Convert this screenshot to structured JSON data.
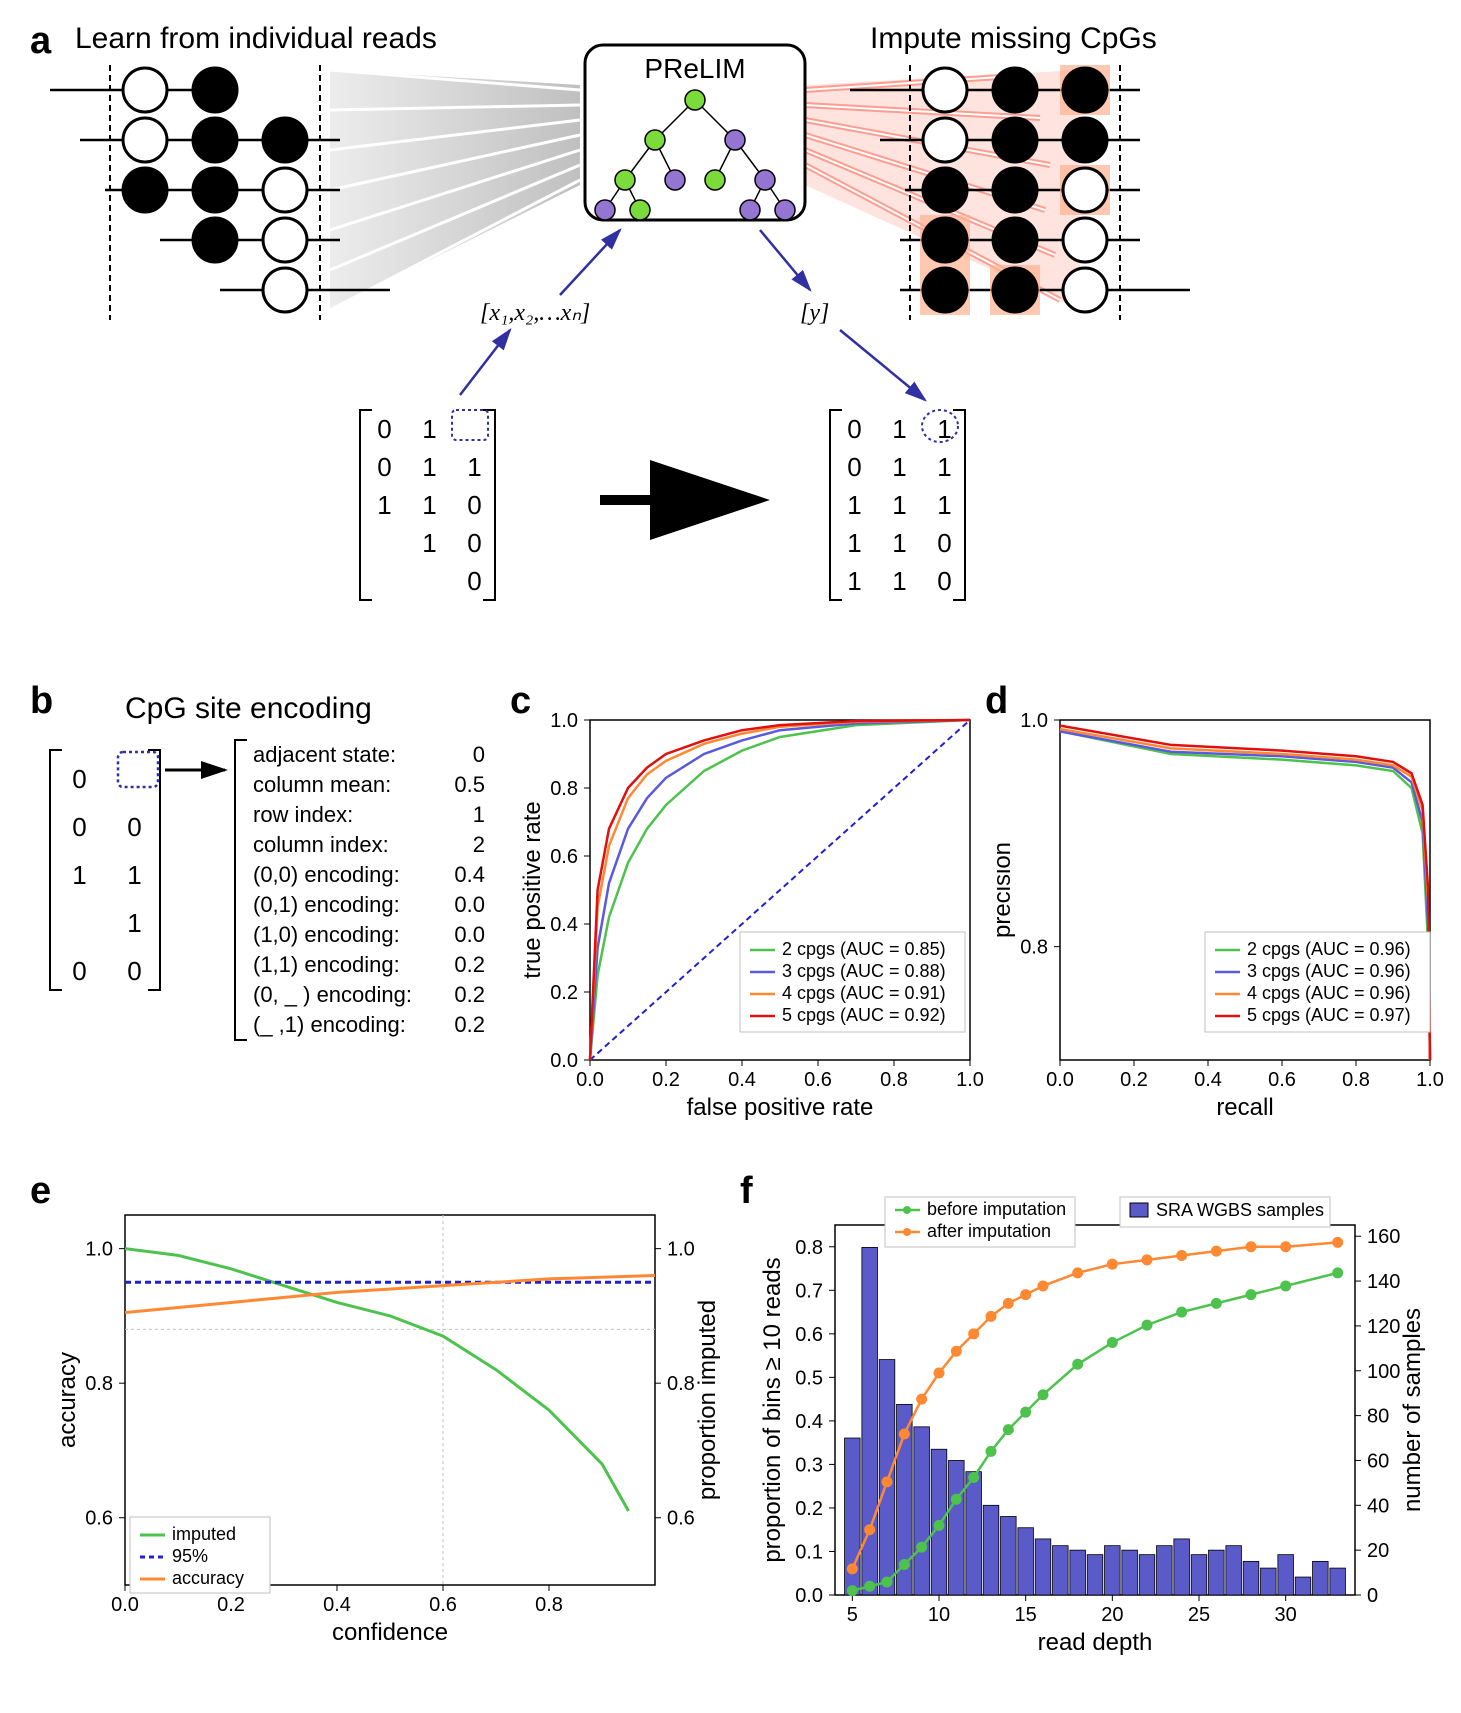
{
  "panel_labels": {
    "a": "a",
    "b": "b",
    "c": "c",
    "d": "d",
    "e": "e",
    "f": "f"
  },
  "titles": {
    "learn": "Learn from individual reads",
    "impute": "Impute missing CpGs",
    "prelim": "PReLIM",
    "encoding_title": "CpG site encoding"
  },
  "formulas": {
    "x": "[x₁,x₂,…xₙ]",
    "y": "[y]"
  },
  "matrix_a_left": [
    [
      "0",
      "1",
      ""
    ],
    [
      "0",
      "1",
      "1"
    ],
    [
      "1",
      "1",
      "0"
    ],
    [
      "",
      "1",
      "0"
    ],
    [
      "",
      "",
      "0"
    ]
  ],
  "matrix_a_right": [
    [
      "0",
      "1",
      "1"
    ],
    [
      "0",
      "1",
      "1"
    ],
    [
      "1",
      "1",
      "1"
    ],
    [
      "1",
      "1",
      "0"
    ],
    [
      "1",
      "1",
      "0"
    ]
  ],
  "matrix_b": [
    [
      "0",
      ""
    ],
    [
      "0",
      "0"
    ],
    [
      "1",
      "1"
    ],
    [
      "",
      "1"
    ],
    [
      "0",
      "0"
    ]
  ],
  "encoding": [
    {
      "label": "adjacent state:",
      "val": "0"
    },
    {
      "label": "column mean:",
      "val": "0.5"
    },
    {
      "label": "row index:",
      "val": "1"
    },
    {
      "label": "column index:",
      "val": "2"
    },
    {
      "label": "(0,0) encoding:",
      "val": "0.4"
    },
    {
      "label": "(0,1) encoding:",
      "val": "0.0"
    },
    {
      "label": "(1,0) encoding:",
      "val": "0.0"
    },
    {
      "label": "(1,1) encoding:",
      "val": "0.2"
    },
    {
      "label": "(0, _ ) encoding:",
      "val": "0.2"
    },
    {
      "label": "(_ ,1) encoding:",
      "val": "0.2"
    }
  ],
  "panel_c": {
    "type": "roc",
    "xlabel": "false positive rate",
    "ylabel": "true positive rate",
    "xlim": [
      0,
      1
    ],
    "ylim": [
      0,
      1
    ],
    "xticks": [
      0.0,
      0.2,
      0.4,
      0.6,
      0.8,
      1.0
    ],
    "yticks": [
      0.0,
      0.2,
      0.4,
      0.6,
      0.8,
      1.0
    ],
    "diag_color": "#2020d0",
    "series": [
      {
        "label": "2 cpgs (AUC = 0.85)",
        "color": "#4dc24d",
        "pts": [
          [
            0,
            0
          ],
          [
            0.02,
            0.25
          ],
          [
            0.05,
            0.42
          ],
          [
            0.1,
            0.58
          ],
          [
            0.15,
            0.68
          ],
          [
            0.2,
            0.75
          ],
          [
            0.3,
            0.85
          ],
          [
            0.4,
            0.91
          ],
          [
            0.5,
            0.95
          ],
          [
            0.7,
            0.985
          ],
          [
            1,
            1
          ]
        ]
      },
      {
        "label": "3 cpgs (AUC = 0.88)",
        "color": "#5a5ae0",
        "pts": [
          [
            0,
            0
          ],
          [
            0.02,
            0.33
          ],
          [
            0.05,
            0.52
          ],
          [
            0.1,
            0.68
          ],
          [
            0.15,
            0.77
          ],
          [
            0.2,
            0.83
          ],
          [
            0.3,
            0.9
          ],
          [
            0.4,
            0.94
          ],
          [
            0.5,
            0.97
          ],
          [
            0.7,
            0.99
          ],
          [
            1,
            1
          ]
        ]
      },
      {
        "label": "4 cpgs (AUC = 0.91)",
        "color": "#ff8833",
        "pts": [
          [
            0,
            0
          ],
          [
            0.02,
            0.45
          ],
          [
            0.05,
            0.63
          ],
          [
            0.1,
            0.77
          ],
          [
            0.15,
            0.84
          ],
          [
            0.2,
            0.88
          ],
          [
            0.3,
            0.93
          ],
          [
            0.4,
            0.96
          ],
          [
            0.5,
            0.98
          ],
          [
            0.7,
            0.995
          ],
          [
            1,
            1
          ]
        ]
      },
      {
        "label": "5 cpgs (AUC = 0.92)",
        "color": "#e01010",
        "pts": [
          [
            0,
            0
          ],
          [
            0.02,
            0.5
          ],
          [
            0.05,
            0.68
          ],
          [
            0.1,
            0.8
          ],
          [
            0.15,
            0.86
          ],
          [
            0.2,
            0.9
          ],
          [
            0.3,
            0.94
          ],
          [
            0.4,
            0.97
          ],
          [
            0.5,
            0.985
          ],
          [
            0.7,
            0.997
          ],
          [
            1,
            1
          ]
        ]
      }
    ]
  },
  "panel_d": {
    "type": "pr",
    "xlabel": "recall",
    "ylabel": "precision",
    "xlim": [
      0,
      1
    ],
    "ylim": [
      0.7,
      1.0
    ],
    "xticks": [
      0.0,
      0.2,
      0.4,
      0.6,
      0.8,
      1.0
    ],
    "yticks": [
      0.8,
      1.0
    ],
    "series": [
      {
        "label": "2 cpgs (AUC = 0.96)",
        "color": "#4dc24d",
        "pts": [
          [
            0,
            0.99
          ],
          [
            0.3,
            0.97
          ],
          [
            0.6,
            0.965
          ],
          [
            0.8,
            0.96
          ],
          [
            0.9,
            0.955
          ],
          [
            0.95,
            0.94
          ],
          [
            0.98,
            0.9
          ],
          [
            0.995,
            0.8
          ],
          [
            1,
            0.7
          ]
        ]
      },
      {
        "label": "3 cpgs (AUC = 0.96)",
        "color": "#5a5ae0",
        "pts": [
          [
            0,
            0.99
          ],
          [
            0.3,
            0.972
          ],
          [
            0.6,
            0.968
          ],
          [
            0.8,
            0.963
          ],
          [
            0.9,
            0.958
          ],
          [
            0.95,
            0.945
          ],
          [
            0.98,
            0.91
          ],
          [
            0.995,
            0.82
          ],
          [
            1,
            0.7
          ]
        ]
      },
      {
        "label": "4 cpgs (AUC = 0.96)",
        "color": "#ff8833",
        "pts": [
          [
            0,
            0.992
          ],
          [
            0.3,
            0.975
          ],
          [
            0.6,
            0.97
          ],
          [
            0.8,
            0.965
          ],
          [
            0.9,
            0.96
          ],
          [
            0.95,
            0.95
          ],
          [
            0.98,
            0.92
          ],
          [
            0.995,
            0.84
          ],
          [
            1,
            0.7
          ]
        ]
      },
      {
        "label": "5 cpgs (AUC = 0.97)",
        "color": "#e01010",
        "pts": [
          [
            0,
            0.995
          ],
          [
            0.3,
            0.978
          ],
          [
            0.6,
            0.973
          ],
          [
            0.8,
            0.968
          ],
          [
            0.9,
            0.963
          ],
          [
            0.95,
            0.953
          ],
          [
            0.98,
            0.925
          ],
          [
            0.995,
            0.85
          ],
          [
            1,
            0.7
          ]
        ]
      }
    ]
  },
  "panel_e": {
    "type": "line",
    "xlabel": "confidence",
    "ylabel": "accuracy",
    "ylabel2": "proportion imputed",
    "xlim": [
      0,
      1
    ],
    "ylim": [
      0.5,
      1.05
    ],
    "xticks": [
      0.0,
      0.2,
      0.4,
      0.6,
      0.8
    ],
    "yticks": [
      0.6,
      0.8,
      1.0
    ],
    "yticks2": [
      0.6,
      0.8,
      1.0
    ],
    "vline_x": 0.6,
    "hline_y": 0.88,
    "hline_color": "#c0c0c0",
    "dash_y": 0.95,
    "dash_color": "#2020d0",
    "series": [
      {
        "label": "imputed",
        "color": "#4dc24d",
        "pts": [
          [
            0,
            1.0
          ],
          [
            0.1,
            0.99
          ],
          [
            0.2,
            0.97
          ],
          [
            0.3,
            0.945
          ],
          [
            0.4,
            0.92
          ],
          [
            0.5,
            0.9
          ],
          [
            0.6,
            0.87
          ],
          [
            0.7,
            0.82
          ],
          [
            0.8,
            0.76
          ],
          [
            0.9,
            0.68
          ],
          [
            0.95,
            0.61
          ]
        ]
      },
      {
        "label": "95%",
        "color": "#2020d0",
        "dash": true,
        "pts": [
          [
            0,
            0.95
          ],
          [
            1,
            0.95
          ]
        ]
      },
      {
        "label": "accuracy",
        "color": "#ff8833",
        "pts": [
          [
            0,
            0.905
          ],
          [
            0.2,
            0.92
          ],
          [
            0.4,
            0.935
          ],
          [
            0.6,
            0.945
          ],
          [
            0.8,
            0.955
          ],
          [
            1,
            0.96
          ]
        ]
      }
    ]
  },
  "panel_f": {
    "type": "combo",
    "xlabel": "read depth",
    "ylabel": "proportion of bins ≥ 10 reads",
    "ylabel2": "number of samples",
    "xlim": [
      4,
      34
    ],
    "ylim": [
      0,
      0.85
    ],
    "ylim2": [
      0,
      165
    ],
    "xticks": [
      5,
      10,
      15,
      20,
      25,
      30
    ],
    "yticks": [
      0.0,
      0.1,
      0.2,
      0.3,
      0.4,
      0.5,
      0.6,
      0.7,
      0.8
    ],
    "yticks2": [
      0,
      20,
      40,
      60,
      80,
      100,
      120,
      140,
      160
    ],
    "bar_legend": "SRA WGBS samples",
    "bar_color": "#5a5ac8",
    "bars_x": [
      5,
      6,
      7,
      8,
      9,
      10,
      11,
      12,
      13,
      14,
      15,
      16,
      17,
      18,
      19,
      20,
      21,
      22,
      23,
      24,
      25,
      26,
      27,
      28,
      29,
      30,
      31,
      32,
      33
    ],
    "bars_y": [
      70,
      155,
      105,
      85,
      75,
      65,
      60,
      55,
      40,
      35,
      30,
      25,
      22,
      20,
      18,
      22,
      20,
      18,
      22,
      25,
      18,
      20,
      22,
      15,
      12,
      18,
      8,
      15,
      12
    ],
    "lines": [
      {
        "label": "before imputation",
        "color": "#4dc24d",
        "pts": [
          [
            5,
            0.01
          ],
          [
            6,
            0.02
          ],
          [
            7,
            0.03
          ],
          [
            8,
            0.07
          ],
          [
            9,
            0.11
          ],
          [
            10,
            0.16
          ],
          [
            11,
            0.22
          ],
          [
            12,
            0.27
          ],
          [
            13,
            0.33
          ],
          [
            14,
            0.38
          ],
          [
            15,
            0.42
          ],
          [
            16,
            0.46
          ],
          [
            18,
            0.53
          ],
          [
            20,
            0.58
          ],
          [
            22,
            0.62
          ],
          [
            24,
            0.65
          ],
          [
            26,
            0.67
          ],
          [
            28,
            0.69
          ],
          [
            30,
            0.71
          ],
          [
            33,
            0.74
          ]
        ]
      },
      {
        "label": "after imputation",
        "color": "#ff8833",
        "pts": [
          [
            5,
            0.06
          ],
          [
            6,
            0.15
          ],
          [
            7,
            0.26
          ],
          [
            8,
            0.37
          ],
          [
            9,
            0.45
          ],
          [
            10,
            0.51
          ],
          [
            11,
            0.56
          ],
          [
            12,
            0.6
          ],
          [
            13,
            0.64
          ],
          [
            14,
            0.67
          ],
          [
            15,
            0.69
          ],
          [
            16,
            0.71
          ],
          [
            18,
            0.74
          ],
          [
            20,
            0.76
          ],
          [
            22,
            0.77
          ],
          [
            24,
            0.78
          ],
          [
            26,
            0.79
          ],
          [
            28,
            0.8
          ],
          [
            30,
            0.8
          ],
          [
            33,
            0.81
          ]
        ]
      }
    ]
  },
  "colors": {
    "tree_green": "#7adb3a",
    "tree_purple": "#9575d2",
    "node_stroke": "#000000",
    "impute_highlight": "#ffb090",
    "gray_fan": "#d0d0d0",
    "red_fan": "#f03030",
    "arrow_blue": "#3030a0"
  }
}
